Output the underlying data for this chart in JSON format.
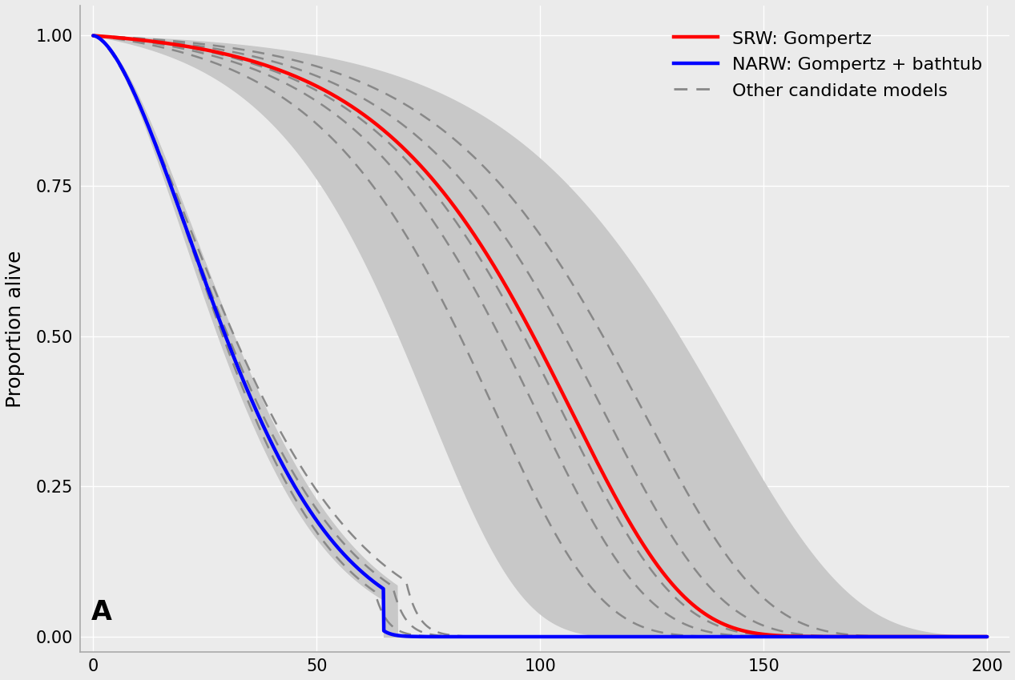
{
  "background_color": "#EBEBEB",
  "panel_color": "#EBEBEB",
  "grid_color": "#FFFFFF",
  "srw_color": "#FF0000",
  "narw_color": "#0000FF",
  "other_color": "#888888",
  "ci_color": "#C8C8C8",
  "ylabel": "Proportion alive",
  "xlabel": "",
  "xlim": [
    -3,
    205
  ],
  "ylim": [
    -0.025,
    1.05
  ],
  "xticks": [
    0,
    50,
    100,
    150,
    200
  ],
  "yticks": [
    0.0,
    0.25,
    0.5,
    0.75,
    1.0
  ],
  "panel_label": "A",
  "legend_labels": [
    "SRW: Gompertz",
    "NARW: Gompertz + bathtub",
    "Other candidate models"
  ],
  "srw_linewidth": 3.2,
  "narw_linewidth": 3.2,
  "other_linewidth": 1.8
}
